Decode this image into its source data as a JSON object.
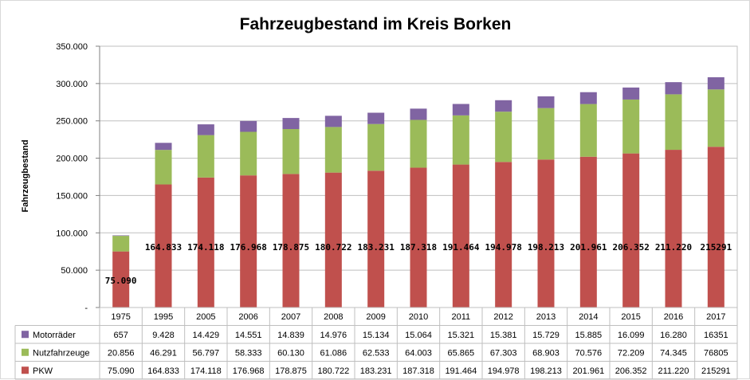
{
  "chart_data": {
    "type": "bar",
    "stacked": true,
    "title": "Fahrzeugbestand im Kreis Borken",
    "ylabel": "Fahrzeugbestand",
    "ylim": [
      0,
      350000
    ],
    "yticks": [
      "-",
      "50.000",
      "100.000",
      "150.000",
      "200.000",
      "250.000",
      "300.000",
      "350.000"
    ],
    "grid": true,
    "legend": "data-table",
    "categories": [
      "1975",
      "1995",
      "2005",
      "2006",
      "2007",
      "2008",
      "2009",
      "2010",
      "2011",
      "2012",
      "2013",
      "2014",
      "2015",
      "2016",
      "2017"
    ],
    "series": [
      {
        "name": "Motorräder",
        "color": "#8064a2",
        "values": [
          657,
          9428,
          14429,
          14551,
          14839,
          14976,
          15134,
          15064,
          15321,
          15381,
          15729,
          15885,
          16099,
          16280,
          16351
        ],
        "labels": [
          "657",
          "9.428",
          "14.429",
          "14.551",
          "14.839",
          "14.976",
          "15.134",
          "15.064",
          "15.321",
          "15.381",
          "15.729",
          "15.885",
          "16.099",
          "16.280",
          "16351"
        ]
      },
      {
        "name": "Nutzfahrzeuge",
        "color": "#9bbb59",
        "values": [
          20856,
          46291,
          56797,
          58333,
          60130,
          61086,
          62533,
          64003,
          65865,
          67303,
          68903,
          70576,
          72209,
          74345,
          76805
        ],
        "labels": [
          "20.856",
          "46.291",
          "56.797",
          "58.333",
          "60.130",
          "61.086",
          "62.533",
          "64.003",
          "65.865",
          "67.303",
          "68.903",
          "70.576",
          "72.209",
          "74.345",
          "76805"
        ]
      },
      {
        "name": "PKW",
        "color": "#c0504d",
        "values": [
          75090,
          164833,
          174118,
          176968,
          178875,
          180722,
          183231,
          187318,
          191464,
          194978,
          198213,
          201961,
          206352,
          211220,
          215291
        ],
        "labels": [
          "75.090",
          "164.833",
          "174.118",
          "176.968",
          "178.875",
          "180.722",
          "183.231",
          "187.318",
          "191.464",
          "194.978",
          "198.213",
          "201.961",
          "206.352",
          "211.220",
          "215291"
        ]
      }
    ]
  }
}
